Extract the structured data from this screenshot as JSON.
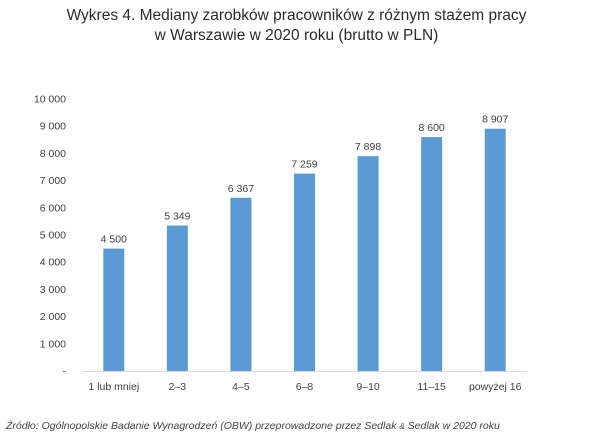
{
  "title": {
    "line1": "Wykres 4. Mediany zarobków pracowników z różnym stażem pracy",
    "line2": "w Warszawie w 2020 roku (brutto w PLN)"
  },
  "source": {
    "before": "Źródło: Ogólnopolskie Badanie Wynagrodzeń (OBW) przeprowadzone przez Sedlak ",
    "amp": "&",
    "after": " Sedlak w 2020 roku"
  },
  "colors": {
    "bar": "#5B9BD5",
    "axis": "#d9d9d9"
  },
  "chart_data": {
    "type": "bar",
    "title": "Wykres 4. Mediany zarobków pracowników z różnym stażem pracy w Warszawie w 2020 roku (brutto w PLN)",
    "categories": [
      "1 lub mniej",
      "2–3",
      "4–5",
      "6–8",
      "9–10",
      "11–15",
      "powyżej 16"
    ],
    "values": [
      4500,
      5349,
      6367,
      7259,
      7898,
      8600,
      8907
    ],
    "value_labels": [
      "4 500",
      "5 349",
      "6 367",
      "7 259",
      "7 898",
      "8 600",
      "8 907"
    ],
    "y_ticks": [
      0,
      1000,
      2000,
      3000,
      4000,
      5000,
      6000,
      7000,
      8000,
      9000,
      10000
    ],
    "y_tick_labels": [
      "-",
      "1 000",
      "2 000",
      "3 000",
      "4 000",
      "5 000",
      "6 000",
      "7 000",
      "8 000",
      "9 000",
      "10 000"
    ],
    "ylim": [
      0,
      10000
    ],
    "grid": false,
    "legend": "none"
  }
}
